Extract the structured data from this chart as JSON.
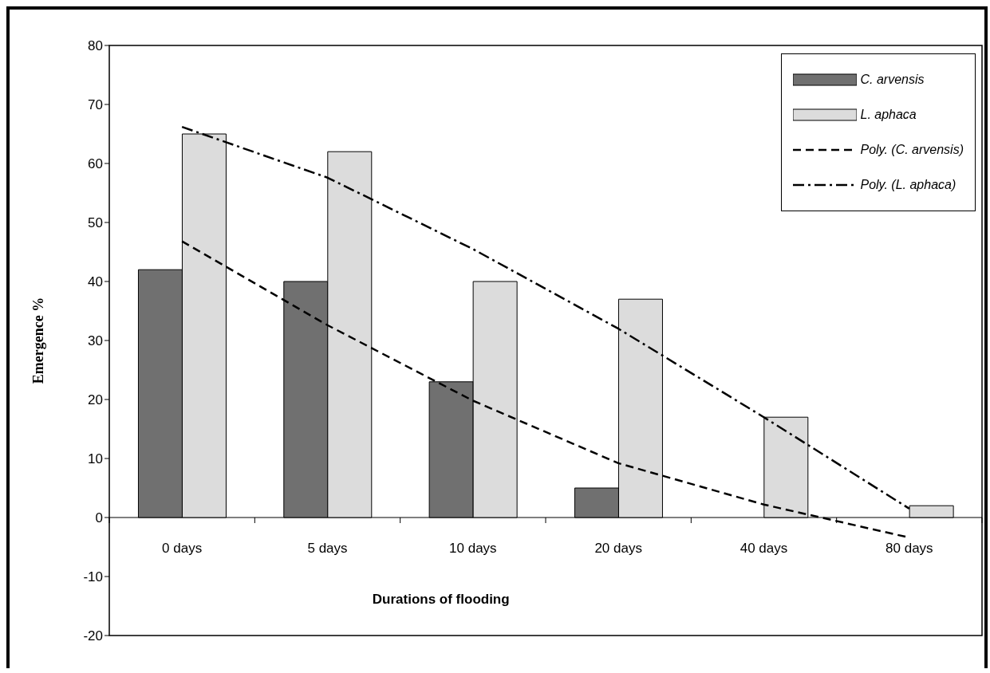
{
  "chart_data": {
    "type": "bar",
    "xlabel": "Durations of flooding",
    "ylabel": "Emergence %",
    "categories": [
      "0 days",
      "5 days",
      "10 days",
      "20 days",
      "40 days",
      "80 days"
    ],
    "series": [
      {
        "name": "C. arvensis",
        "type": "bar",
        "color": "#707070",
        "values": [
          42,
          40,
          23,
          5,
          0,
          0
        ]
      },
      {
        "name": "L. aphaca",
        "type": "bar",
        "color": "#dcdcdc",
        "values": [
          65,
          62,
          40,
          37,
          17,
          2
        ]
      },
      {
        "name": "Poly. (C. arvensis)",
        "type": "line",
        "color": "#000000",
        "line_style": "dashed",
        "values": [
          46.8,
          32.6,
          19.8,
          9.2,
          2.2,
          -3.4
        ]
      },
      {
        "name": "Poly. (L. aphaca)",
        "type": "line",
        "color": "#000000",
        "line_style": "dashdot",
        "values": [
          66.2,
          57.6,
          45.5,
          32,
          17,
          1.5
        ]
      }
    ],
    "ylim": [
      -20,
      80
    ],
    "yticks": [
      -20,
      -10,
      0,
      10,
      20,
      30,
      40,
      50,
      60,
      70,
      80
    ],
    "legend": "top right"
  }
}
